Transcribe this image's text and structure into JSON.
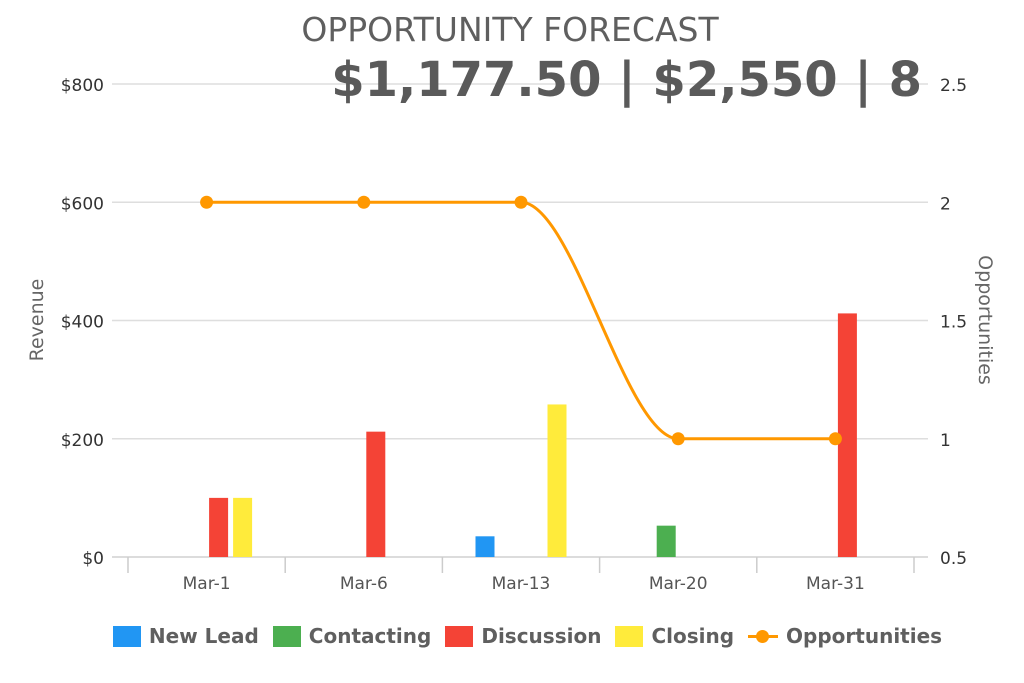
{
  "title": "OPPORTUNITY FORECAST",
  "subtitle": "$1,177.50 | $2,550 | 8",
  "chart_data": {
    "type": "bar",
    "categories": [
      "Mar-1",
      "Mar-6",
      "Mar-13",
      "Mar-20",
      "Mar-31"
    ],
    "series": [
      {
        "name": "New Lead",
        "type": "bar",
        "axis": "left",
        "color": "#2196F3",
        "values": [
          0,
          0,
          35,
          0,
          0
        ]
      },
      {
        "name": "Contacting",
        "type": "bar",
        "axis": "left",
        "color": "#4CAF50",
        "values": [
          0,
          0,
          0,
          53,
          0
        ]
      },
      {
        "name": "Discussion",
        "type": "bar",
        "axis": "left",
        "color": "#F44336",
        "values": [
          100,
          212,
          0,
          0,
          412
        ]
      },
      {
        "name": "Closing",
        "type": "bar",
        "axis": "left",
        "color": "#FFEB3B",
        "values": [
          100,
          0,
          258,
          0,
          0
        ]
      },
      {
        "name": "Opportunities",
        "type": "line",
        "axis": "right",
        "color": "#FF9800",
        "values": [
          2,
          2,
          2,
          1,
          1
        ]
      }
    ],
    "ylabel": "Revenue",
    "y2label": "Opportunities",
    "ylim": [
      0,
      800
    ],
    "y2lim": [
      0.5,
      2.5
    ],
    "yticks": [
      "$0",
      "$200",
      "$400",
      "$600",
      "$800"
    ],
    "y2ticks": [
      "0.5",
      "1",
      "1.5",
      "2",
      "2.5"
    ],
    "grid": true,
    "legend_position": "bottom"
  }
}
